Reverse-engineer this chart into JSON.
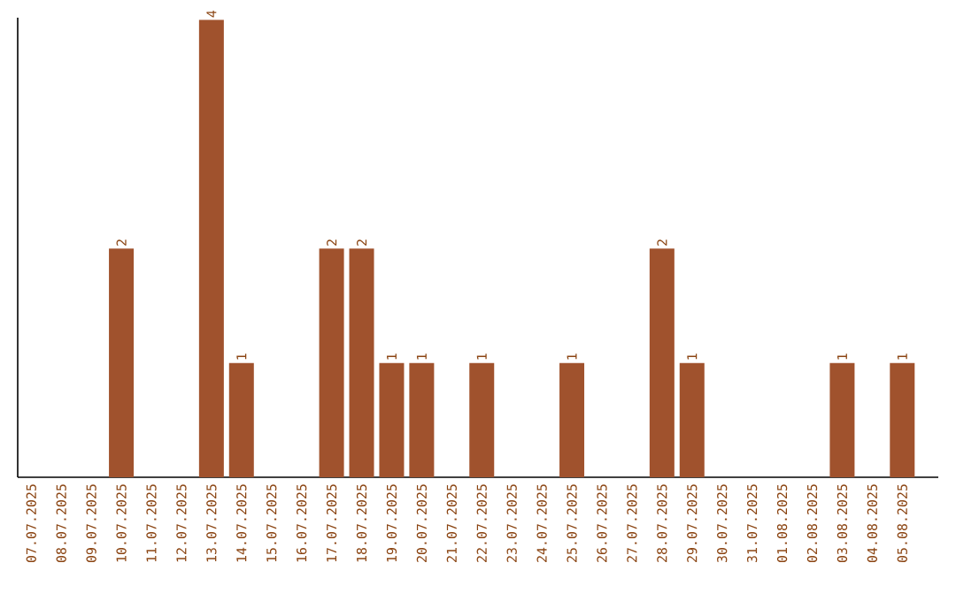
{
  "chart_data": {
    "type": "bar",
    "color": "#a0522d",
    "categories": [
      "07.07.2025",
      "08.07.2025",
      "09.07.2025",
      "10.07.2025",
      "11.07.2025",
      "12.07.2025",
      "13.07.2025",
      "14.07.2025",
      "15.07.2025",
      "16.07.2025",
      "17.07.2025",
      "18.07.2025",
      "19.07.2025",
      "20.07.2025",
      "21.07.2025",
      "22.07.2025",
      "23.07.2025",
      "24.07.2025",
      "25.07.2025",
      "26.07.2025",
      "27.07.2025",
      "28.07.2025",
      "29.07.2025",
      "30.07.2025",
      "31.07.2025",
      "01.08.2025",
      "02.08.2025",
      "03.08.2025",
      "04.08.2025",
      "05.08.2025"
    ],
    "values": [
      0,
      0,
      0,
      2,
      0,
      0,
      4,
      1,
      0,
      0,
      2,
      2,
      1,
      1,
      0,
      1,
      0,
      0,
      1,
      0,
      0,
      2,
      1,
      0,
      0,
      0,
      0,
      1,
      0,
      1
    ],
    "value_labels": [
      null,
      null,
      null,
      "2",
      null,
      null,
      "4",
      "1",
      null,
      null,
      "2",
      "2",
      "1",
      "1",
      null,
      "1",
      null,
      null,
      "1",
      null,
      null,
      "2",
      "1",
      null,
      null,
      null,
      null,
      "1",
      null,
      "1"
    ],
    "tick_labels": "x",
    "grid": false
  }
}
